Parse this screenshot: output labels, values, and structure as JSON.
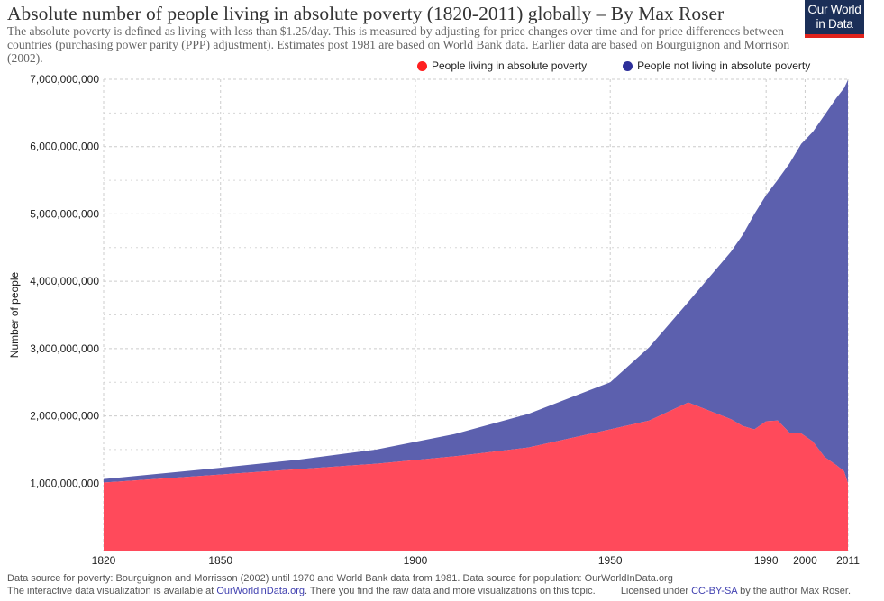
{
  "header": {
    "title": "Absolute number of people living in absolute poverty (1820-2011) globally – By Max Roser",
    "subtitle": "The absolute poverty is defined as living with less than $1.25/day. This is measured by adjusting for price changes over time and for price differences between countries (purchasing power parity (PPP) adjustment). Estimates post 1981 are based on World Bank data. Earlier data are based on Bourguignon and Morrison (2002)."
  },
  "logo": {
    "line1": "Our World",
    "line2": "in Data"
  },
  "footer": {
    "source": "Data source for poverty: Bourguignon and Morrisson (2002) until 1970 and World Bank data from 1981. Data source for population: OurWorldInData.org",
    "interactive_prefix": "The interactive data visualization is available at ",
    "interactive_link": "OurWorldinData.org",
    "interactive_suffix": ". There you find the raw data and more visualizations on this topic.",
    "license_prefix": "Licensed under ",
    "license_link": "CC-BY-SA",
    "license_suffix": " by the author Max Roser."
  },
  "colors": {
    "poverty": "#ff4a5b",
    "not_poverty": "#5c60ae",
    "legend_poverty": "#ff2020",
    "legend_not_poverty": "#2d2f9a",
    "grid": "#cccccc",
    "axis_text": "#222222"
  },
  "chart_data": {
    "type": "area",
    "stacked": true,
    "ylabel": "Number of people",
    "xlabel": "",
    "xlim": [
      1820,
      2011
    ],
    "ylim": [
      0,
      7000000000
    ],
    "x_ticks": [
      1820,
      1850,
      1900,
      1950,
      1990,
      2000,
      2011
    ],
    "y_ticks": [
      1000000000,
      2000000000,
      3000000000,
      4000000000,
      5000000000,
      6000000000,
      7000000000
    ],
    "y_tick_labels": [
      "1,000,000,000",
      "2,000,000,000",
      "3,000,000,000",
      "4,000,000,000",
      "5,000,000,000",
      "6,000,000,000",
      "7,000,000,000"
    ],
    "grid": true,
    "legend_position": "top-right",
    "x": [
      1820,
      1850,
      1870,
      1890,
      1910,
      1929,
      1950,
      1960,
      1970,
      1981,
      1984,
      1987,
      1990,
      1993,
      1996,
      1999,
      2002,
      2005,
      2008,
      2010,
      2011
    ],
    "series": [
      {
        "name": "People living in absolute poverty",
        "values": [
          1010000000,
          1130000000,
          1210000000,
          1290000000,
          1400000000,
          1530000000,
          1800000000,
          1930000000,
          2200000000,
          1950000000,
          1850000000,
          1800000000,
          1920000000,
          1930000000,
          1750000000,
          1740000000,
          1620000000,
          1390000000,
          1270000000,
          1180000000,
          1000000000
        ]
      },
      {
        "name": "People not living in absolute poverty",
        "values": [
          52000000,
          100000000,
          140000000,
          210000000,
          330000000,
          500000000,
          700000000,
          1090000000,
          1490000000,
          2490000000,
          2840000000,
          3200000000,
          3360000000,
          3580000000,
          4000000000,
          4300000000,
          4600000000,
          5080000000,
          5450000000,
          5690000000,
          5990000000
        ]
      }
    ]
  }
}
